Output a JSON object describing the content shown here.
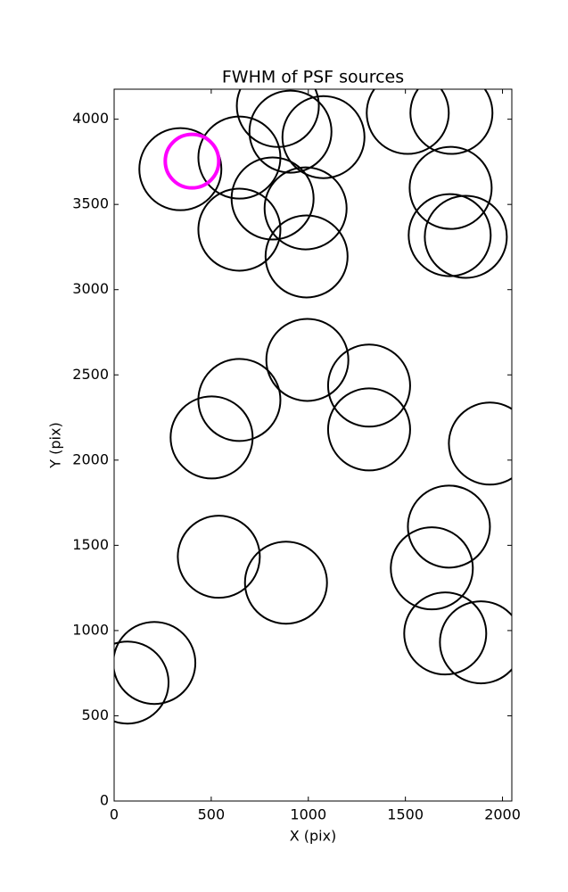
{
  "chart_data": {
    "type": "scatter",
    "title": "FWHM of PSF sources",
    "x_label": "X (pix)",
    "y_label": "Y (pix)",
    "xlim": [
      0,
      2048
    ],
    "ylim": [
      0,
      4176
    ],
    "xticks": [
      0,
      500,
      1000,
      1500,
      2000
    ],
    "yticks": [
      0,
      500,
      1000,
      1500,
      2000,
      2500,
      3000,
      3500,
      4000
    ],
    "grid": false,
    "series": [
      {
        "color": "#000000",
        "x": [
          341,
          645,
          843,
          908,
          1078,
          1512,
          1737,
          1733,
          816,
          986,
          645,
          991,
          1728,
          1811,
          995,
          1313,
          645,
          502,
          1313,
          1935,
          1724,
          1636,
          539,
          885,
          1705,
          1889,
          207,
          69
        ],
        "values": [
          3707,
          3775,
          4078,
          3927,
          3895,
          4037,
          4037,
          3597,
          3535,
          3477,
          3352,
          3195,
          3320,
          3310,
          2588,
          2437,
          2353,
          2133,
          2180,
          2097,
          1610,
          1365,
          1433,
          1281,
          983,
          931,
          810,
          695
        ]
      },
      {
        "color": "#ff00ff",
        "x": [
          401
        ],
        "values": [
          3754
        ]
      }
    ]
  }
}
